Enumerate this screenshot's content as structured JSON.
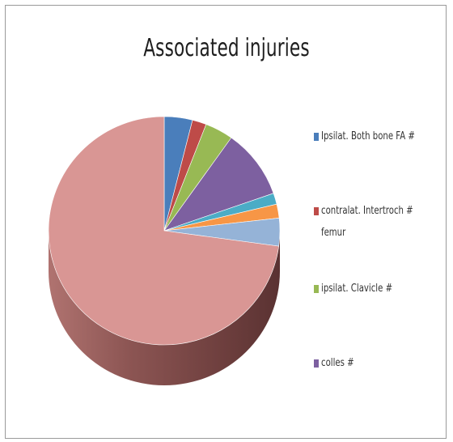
{
  "chart_data": {
    "type": "pie",
    "title": "Associated injuries",
    "style": "3d",
    "legend_position": "right",
    "series": [
      {
        "name": "Ipsilat. Both bone FA #",
        "value": 1,
        "color": "#4a7ebb"
      },
      {
        "name": "contralat. Intertroch # femur",
        "value": 0.5,
        "color": "#be4b48"
      },
      {
        "name": "ipsilat. Clavicle #",
        "value": 1,
        "color": "#98b954"
      },
      {
        "name": "colles #",
        "value": 2.5,
        "color": "#7d60a0"
      },
      {
        "value": 0.4,
        "color": "#4bacc6"
      },
      {
        "value": 0.5,
        "color": "#f79646"
      },
      {
        "value": 1,
        "color": "#95b3d7"
      },
      {
        "value": 18.5,
        "color": "#d99694"
      }
    ]
  }
}
